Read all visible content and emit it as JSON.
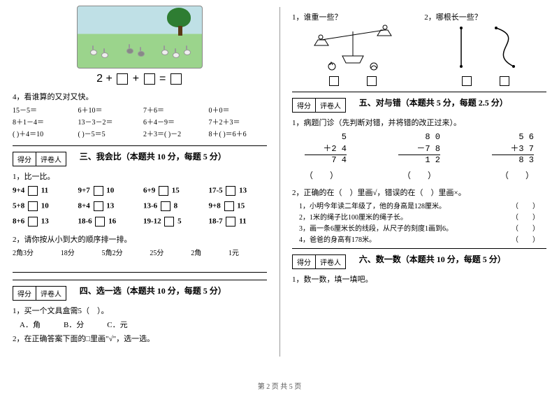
{
  "footer": "第 2 页 共 5 页",
  "left": {
    "equation": {
      "prefix": "2 + ",
      "op2": " + ",
      "eq": " = "
    },
    "q4": {
      "label": "4，看谁算的又对又快。",
      "rows": [
        [
          "15－5＝",
          "6＋10＝",
          "7＋6＝",
          "0＋0＝"
        ],
        [
          "8＋1－4＝",
          "13－3－2＝",
          "6＋4－9＝",
          "7＋2＋3＝"
        ],
        [
          "(  )＋4＝10",
          "(  )－5＝5",
          "2＋3＝(  )－2",
          "8＋(  )＝6＋6"
        ]
      ]
    },
    "scoreCells": [
      "得分",
      "评卷人"
    ],
    "sec3": {
      "title": "三、我会比（本题共 10 分，每题 5 分）",
      "q1": "1，比一比。",
      "items": [
        [
          "9+4",
          "11"
        ],
        [
          "9+7",
          "10"
        ],
        [
          "6+9",
          "15"
        ],
        [
          "17-5",
          "13"
        ],
        [
          "5+8",
          "10"
        ],
        [
          "8+4",
          "13"
        ],
        [
          "13-6",
          "8"
        ],
        [
          "9+8",
          "15"
        ],
        [
          "8+6",
          "13"
        ],
        [
          "18-6",
          "16"
        ],
        [
          "19-12",
          "5"
        ],
        [
          "18-7",
          "11"
        ]
      ],
      "q2": "2，请你按从小到大的顺序排一排。",
      "sortItems": [
        "2角3分",
        "18分",
        "5角2分",
        "25分",
        "2角",
        "1元"
      ]
    },
    "sec4": {
      "title": "四、选一选（本题共 10 分，每题 5 分）",
      "q1": "1，买一个文具盒需5（　）。",
      "opts": "A．角　　　B．分　　　C．元",
      "q2": "2，在正确答案下面的□里画\"√\"，选一选。"
    }
  },
  "right": {
    "bal": {
      "q1": "1，谁重一些？",
      "q2": "2，哪根长一些？"
    },
    "sec5": {
      "title": "五、对与错（本题共 5 分，每题 2.5 分）",
      "q1": "1，病题门诊（先判断对错，并将错的改正过来）。",
      "cols": [
        {
          "a": "5",
          "b": "＋2 4",
          "r": "7 4"
        },
        {
          "a": "8 0",
          "b": "－7 8",
          "r": "1 2"
        },
        {
          "a": "5 6",
          "b": "＋3 7",
          "r": "8 3"
        }
      ],
      "paren": "（　　）",
      "q2": "2，正确的在（　）里画√，错误的在（　）里画×。",
      "tf": [
        "1，小明今年读二年级了，他的身高是128厘米。",
        "2，1米的绳子比100厘米的绳子长。",
        "3，画一条6厘米长的线段，从尺子的刻度1画到6。",
        "4，爸爸的身高有178米。"
      ],
      "tfParen": "（　　）"
    },
    "sec6": {
      "title": "六、数一数（本题共 10 分，每题 5 分）",
      "q1": "1，数一数，填一填吧。"
    }
  }
}
